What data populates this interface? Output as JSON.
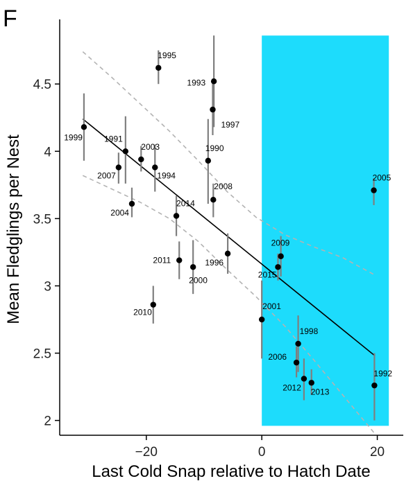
{
  "panel_label": "F",
  "chart_data": {
    "type": "scatter",
    "title": "",
    "xlabel": "Last Cold Snap relative to Hatch Date",
    "ylabel": "Mean Fledglings per Nest",
    "xlim": [
      -35,
      24.5
    ],
    "ylim": [
      1.89,
      4.98
    ],
    "xticks": [
      -20,
      0,
      20
    ],
    "xtick_labels": [
      "−20",
      "0",
      "20"
    ],
    "yticks": [
      2,
      2.5,
      3,
      3.5,
      4,
      4.5
    ],
    "ytick_labels": [
      "2",
      "2.5",
      "3",
      "3.5",
      "4",
      "4.5"
    ],
    "grid": false,
    "shaded_region": {
      "x": [
        0,
        22
      ],
      "y": [
        1.96,
        4.86
      ],
      "color": "#1ddcfc"
    },
    "regression_line": {
      "x": [
        -31,
        19.6
      ],
      "y": [
        4.24,
        2.48
      ],
      "color": "#000000"
    },
    "confidence_band": {
      "color": "#b3b3b3",
      "upper": [
        [
          -31,
          4.74
        ],
        [
          -26,
          4.55
        ],
        [
          -21,
          4.35
        ],
        [
          -16,
          4.15
        ],
        [
          -11,
          3.93
        ],
        [
          -6,
          3.7
        ],
        [
          -1,
          3.51
        ],
        [
          4,
          3.38
        ],
        [
          9,
          3.29
        ],
        [
          14,
          3.21
        ],
        [
          19.6,
          3.08
        ]
      ],
      "lower": [
        [
          -31,
          3.82
        ],
        [
          -26,
          3.72
        ],
        [
          -21,
          3.62
        ],
        [
          -16,
          3.5
        ],
        [
          -11,
          3.33
        ],
        [
          -6,
          3.12
        ],
        [
          -1,
          2.92
        ],
        [
          4,
          2.7
        ],
        [
          9,
          2.45
        ],
        [
          14,
          2.19
        ],
        [
          19.6,
          1.9
        ]
      ]
    },
    "point_color": "#000000",
    "errorbar_color": "#7f7f7f",
    "points": [
      {
        "year": "1992",
        "x": 19.5,
        "y": 2.26,
        "lo": 2.0,
        "hi": 2.5
      },
      {
        "year": "1993",
        "x": -8.3,
        "y": 4.52,
        "lo": 4.18,
        "hi": 4.86
      },
      {
        "year": "1994",
        "x": -18.5,
        "y": 3.88,
        "lo": 3.7,
        "hi": 4.05
      },
      {
        "year": "1995",
        "x": -17.9,
        "y": 4.62,
        "lo": 4.5,
        "hi": 4.75
      },
      {
        "year": "1996",
        "x": -5.9,
        "y": 3.24,
        "lo": 3.09,
        "hi": 3.39
      },
      {
        "year": "1997",
        "x": -8.5,
        "y": 4.31,
        "lo": 4.12,
        "hi": 4.54
      },
      {
        "year": "1998",
        "x": 6.3,
        "y": 2.57,
        "lo": 2.36,
        "hi": 2.78
      },
      {
        "year": "1999",
        "x": -30.8,
        "y": 4.18,
        "lo": 3.93,
        "hi": 4.43
      },
      {
        "year": "2000",
        "x": -11.9,
        "y": 3.14,
        "lo": 2.94,
        "hi": 3.34
      },
      {
        "year": "2001",
        "x": 0.0,
        "y": 2.75,
        "lo": 2.46,
        "hi": 3.04
      },
      {
        "year": "2003",
        "x": -20.9,
        "y": 3.94,
        "lo": 3.85,
        "hi": 4.04
      },
      {
        "year": "2004",
        "x": -22.5,
        "y": 3.61,
        "lo": 3.51,
        "hi": 3.73
      },
      {
        "year": "2005",
        "x": 19.4,
        "y": 3.71,
        "lo": 3.6,
        "hi": 3.8
      },
      {
        "year": "2006",
        "x": 6.0,
        "y": 2.43,
        "lo": 2.32,
        "hi": 2.55
      },
      {
        "year": "2007",
        "x": -24.8,
        "y": 3.88,
        "lo": 3.76,
        "hi": 3.99
      },
      {
        "year": "2008",
        "x": -8.4,
        "y": 3.64,
        "lo": 3.51,
        "hi": 3.76
      },
      {
        "year": "2009",
        "x": 3.3,
        "y": 3.22,
        "lo": 3.07,
        "hi": 3.37
      },
      {
        "year": "2010",
        "x": -18.8,
        "y": 2.86,
        "lo": 2.72,
        "hi": 3.0
      },
      {
        "year": "2011",
        "x": -14.3,
        "y": 3.19,
        "lo": 3.05,
        "hi": 3.33
      },
      {
        "year": "2012",
        "x": 7.3,
        "y": 2.31,
        "lo": 2.15,
        "hi": 2.46
      },
      {
        "year": "2013",
        "x": 8.6,
        "y": 2.28,
        "lo": 2.19,
        "hi": 2.38
      },
      {
        "year": "2014",
        "x": -14.8,
        "y": 3.52,
        "lo": 3.37,
        "hi": 3.67
      },
      {
        "year": "2015",
        "x": 2.8,
        "y": 3.14,
        "lo": 3.04,
        "hi": 3.24
      },
      {
        "year": "1990",
        "x": -9.3,
        "y": 3.93,
        "lo": 3.61,
        "hi": 4.24
      },
      {
        "year": "1991",
        "x": -23.6,
        "y": 4.0,
        "lo": 3.76,
        "hi": 4.26
      }
    ]
  }
}
